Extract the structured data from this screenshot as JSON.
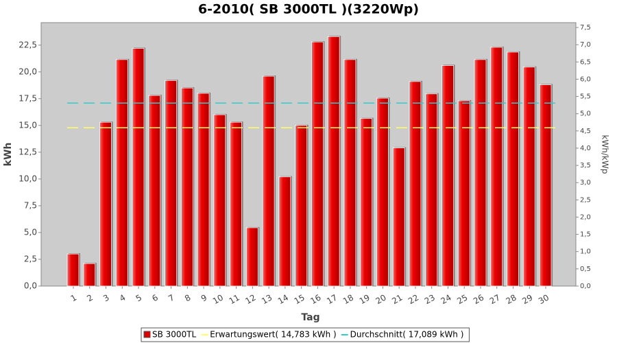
{
  "chart_data": {
    "type": "bar",
    "title": "6-2010( SB 3000TL )(3220Wp)",
    "x_label": "Tag",
    "y_label": "kWh",
    "y2_label": "kWh/kWp",
    "categories": [
      "1",
      "2",
      "3",
      "4",
      "5",
      "6",
      "7",
      "8",
      "9",
      "10",
      "11",
      "12",
      "13",
      "14",
      "15",
      "16",
      "17",
      "18",
      "19",
      "20",
      "21",
      "22",
      "23",
      "24",
      "25",
      "26",
      "27",
      "28",
      "29",
      "30"
    ],
    "series": [
      {
        "name": "SB 3000TL",
        "color": "#dd0000",
        "values": [
          3.0,
          2.1,
          15.3,
          21.15,
          22.2,
          17.8,
          19.2,
          18.5,
          18.0,
          16.0,
          15.3,
          5.45,
          19.6,
          10.2,
          15.0,
          22.8,
          23.3,
          21.15,
          15.65,
          17.55,
          12.9,
          19.1,
          17.95,
          20.6,
          17.3,
          21.15,
          22.3,
          21.85,
          20.45,
          18.8
        ]
      }
    ],
    "reference_lines": [
      {
        "name": "Erwartungswert( 14,783 kWh )",
        "value": 14.783,
        "color": "#ffff66"
      },
      {
        "name": "Durchschnitt( 17,089 kWh )",
        "value": 17.089,
        "color": "#33cccc"
      }
    ],
    "ylim": [
      0,
      24.6
    ],
    "yticks": [
      {
        "value": 0,
        "label": "0,0"
      },
      {
        "value": 2.5,
        "label": "2,5"
      },
      {
        "value": 5,
        "label": "5,0"
      },
      {
        "value": 7.5,
        "label": "7,5"
      },
      {
        "value": 10,
        "label": "10,0"
      },
      {
        "value": 12.5,
        "label": "12,5"
      },
      {
        "value": 15,
        "label": "15,0"
      },
      {
        "value": 17.5,
        "label": "17,5"
      },
      {
        "value": 20,
        "label": "20,0"
      },
      {
        "value": 22.5,
        "label": "22,5"
      }
    ],
    "y2lim": [
      0,
      7.64
    ],
    "y2ticks": [
      {
        "value": 0,
        "label": "0,0"
      },
      {
        "value": 0.5,
        "label": "0,5"
      },
      {
        "value": 1,
        "label": "1,0"
      },
      {
        "value": 1.5,
        "label": "1,5"
      },
      {
        "value": 2,
        "label": "2,0"
      },
      {
        "value": 2.5,
        "label": "2,5"
      },
      {
        "value": 3,
        "label": "3,0"
      },
      {
        "value": 3.5,
        "label": "3,5"
      },
      {
        "value": 4,
        "label": "4,0"
      },
      {
        "value": 4.5,
        "label": "4,5"
      },
      {
        "value": 5,
        "label": "5,0"
      },
      {
        "value": 5.5,
        "label": "5,5"
      },
      {
        "value": 6,
        "label": "6,0"
      },
      {
        "value": 6.5,
        "label": "6,5"
      },
      {
        "value": 7,
        "label": "7,0"
      },
      {
        "value": 7.5,
        "label": "7,5"
      }
    ],
    "background": "#cccccc"
  }
}
